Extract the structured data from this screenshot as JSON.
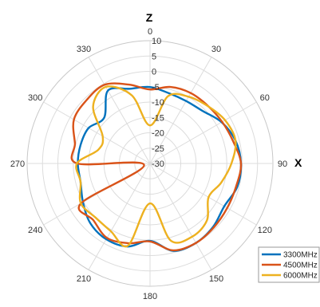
{
  "chart_data": {
    "type": "polar-line",
    "top_axis_label": "Z",
    "right_axis_label": "X",
    "theta_zero": "top",
    "theta_direction": "clockwise",
    "theta_ticks": [
      0,
      30,
      60,
      90,
      120,
      150,
      180,
      210,
      240,
      270,
      300,
      330
    ],
    "theta_tick_labels": [
      "0",
      "30",
      "60",
      "90",
      "120",
      "150",
      "180",
      "210",
      "240",
      "270",
      "300",
      "330"
    ],
    "r_range": [
      -30,
      10
    ],
    "r_ticks": [
      -30,
      -25,
      -20,
      -15,
      -10,
      -5,
      0,
      5,
      10
    ],
    "r_tick_labels": [
      "-30",
      "-25",
      "-20",
      "-15",
      "-10",
      "-5",
      "0",
      "5",
      "10"
    ],
    "grid": true,
    "legend_position": "bottom-right",
    "theta": [
      0,
      15,
      30,
      45,
      60,
      75,
      90,
      105,
      120,
      135,
      150,
      165,
      180,
      195,
      210,
      225,
      240,
      255,
      270,
      285,
      300,
      315,
      330,
      345
    ],
    "series": [
      {
        "name": "3300MHz",
        "color": "#0072BD",
        "r": [
          -5.1,
          -6.3,
          -6.5,
          -5.8,
          -3.1,
          -1.2,
          -0.4,
          -0.6,
          -2.1,
          -0.9,
          -0.1,
          -0.5,
          -4.8,
          -2.0,
          -1.5,
          -2.5,
          -4.8,
          -6.6,
          -6.5,
          -6.6,
          -6.9,
          -8.9,
          -2.6,
          -4.8
        ]
      },
      {
        "name": "4500MHz",
        "color": "#D95319",
        "r": [
          -5.9,
          -4.2,
          -3.5,
          -3.4,
          -2.9,
          -2.0,
          -0.4,
          -1.0,
          -1.0,
          -0.6,
          -0.1,
          -0.7,
          -4.6,
          -3.1,
          -2.0,
          -3.9,
          -4.1,
          -28.0,
          -6.3,
          -4.7,
          -1.4,
          -0.8,
          -0.4,
          -3.4
        ]
      },
      {
        "name": "6000MHz",
        "color": "#EDB120",
        "r": [
          -17.6,
          -7.3,
          -4.9,
          -3.5,
          -1.8,
          -1.2,
          -3.5,
          -6.0,
          -8.0,
          -3.8,
          -2.5,
          -4.0,
          -17.0,
          -2.3,
          -4.5,
          -5.0,
          -4.0,
          -6.6,
          -6.2,
          -12.6,
          -12.2,
          -3.8,
          -1.2,
          -7.0
        ]
      }
    ]
  }
}
